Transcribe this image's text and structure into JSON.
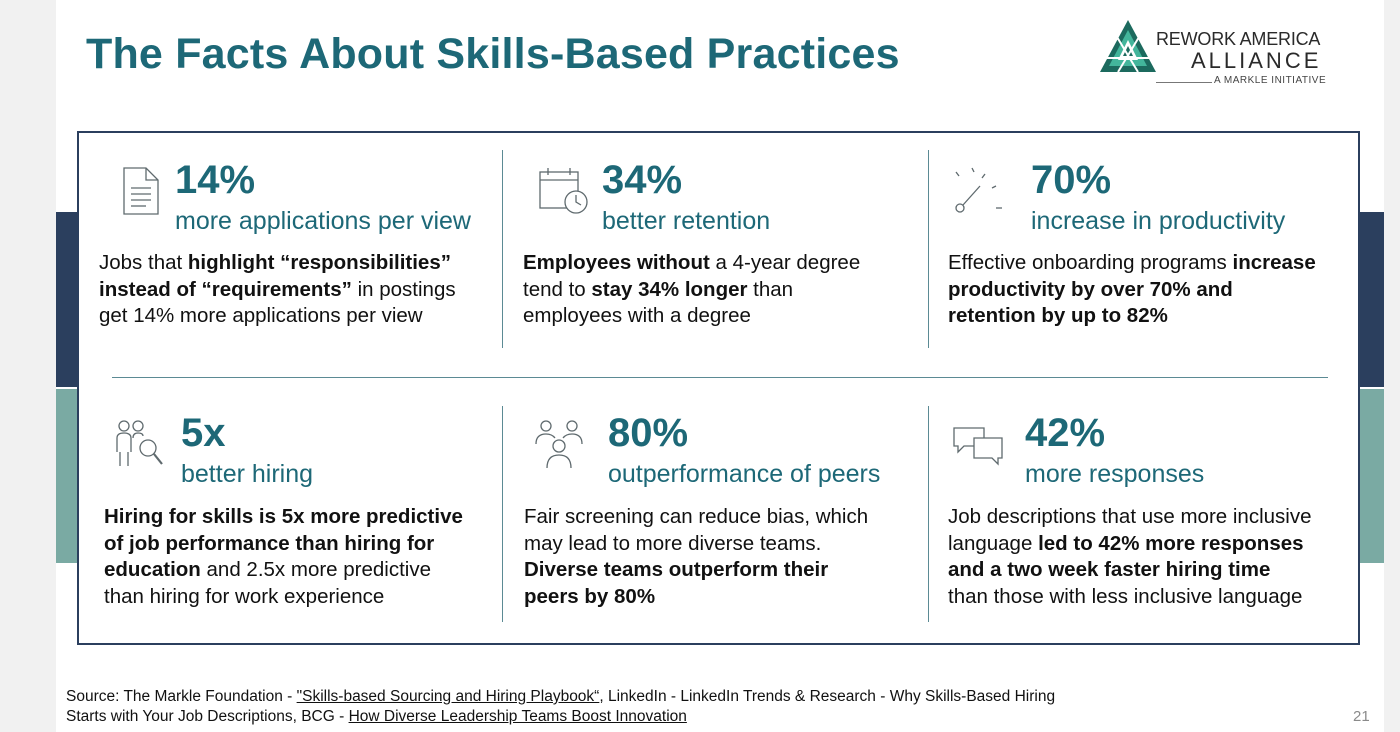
{
  "slide": {
    "title": "The Facts About Skills-Based Practices",
    "page_number": "21"
  },
  "logo": {
    "line1": "REWORK AMERICA",
    "line2": "ALLIANCE",
    "line3": "A MARKLE INITIATIVE",
    "colors": {
      "dark": "#1c6a5e",
      "light": "#43b59b"
    }
  },
  "colors": {
    "title": "#1d6877",
    "navy": "#2b3f5e",
    "teal": "#7aaaa3"
  },
  "stats": [
    {
      "icon": "document-icon",
      "value": "14%",
      "label": "more applications per view",
      "desc": [
        [
          {
            "t": "Jobs that ",
            "b": false
          },
          {
            "t": "highlight “responsibilities”",
            "b": true
          }
        ],
        [
          {
            "t": "instead of “requirements”",
            "b": true
          },
          {
            "t": " in postings",
            "b": false
          }
        ],
        [
          {
            "t": "get 14% more applications per view",
            "b": false
          }
        ]
      ]
    },
    {
      "icon": "calendar-clock-icon",
      "value": "34%",
      "label": "better retention",
      "desc": [
        [
          {
            "t": "Employees without",
            "b": true
          },
          {
            "t": " a 4-year degree",
            "b": false
          }
        ],
        [
          {
            "t": "tend to ",
            "b": false
          },
          {
            "t": "stay 34% longer",
            "b": true
          },
          {
            "t": " than",
            "b": false
          }
        ],
        [
          {
            "t": "employees with a degree",
            "b": false
          }
        ]
      ]
    },
    {
      "icon": "speedometer-icon",
      "value": "70%",
      "label": "increase in productivity",
      "desc": [
        [
          {
            "t": "Effective onboarding programs ",
            "b": false
          },
          {
            "t": "increase",
            "b": true
          }
        ],
        [
          {
            "t": "productivity by over 70% and",
            "b": true
          }
        ],
        [
          {
            "t": "retention by up to 82%",
            "b": true
          }
        ]
      ]
    },
    {
      "icon": "people-search-icon",
      "value": "5x",
      "label": "better hiring",
      "desc": [
        [
          {
            "t": "Hiring for skills is 5x more predictive",
            "b": true
          }
        ],
        [
          {
            "t": "of job performance than hiring for",
            "b": true
          }
        ],
        [
          {
            "t": "education",
            "b": true
          },
          {
            "t": " and 2.5x more predictive",
            "b": false
          }
        ],
        [
          {
            "t": "than hiring for work experience",
            "b": false
          }
        ]
      ]
    },
    {
      "icon": "people-group-icon",
      "value": "80%",
      "label": "outperformance of peers",
      "desc": [
        [
          {
            "t": "Fair screening can reduce bias, which",
            "b": false
          }
        ],
        [
          {
            "t": "may lead to more diverse teams.",
            "b": false
          }
        ],
        [
          {
            "t": "Diverse teams outperform their",
            "b": true
          }
        ],
        [
          {
            "t": "peers by 80%",
            "b": true
          }
        ]
      ]
    },
    {
      "icon": "chat-bubbles-icon",
      "value": "42%",
      "label": "more responses",
      "desc": [
        [
          {
            "t": "Job descriptions that use more inclusive",
            "b": false
          }
        ],
        [
          {
            "t": "language ",
            "b": false
          },
          {
            "t": "led to 42% more responses",
            "b": true
          }
        ],
        [
          {
            "t": "and a two week faster hiring time",
            "b": true
          }
        ],
        [
          {
            "t": "than those with less inclusive language",
            "b": false
          }
        ]
      ]
    }
  ],
  "source": {
    "line1_prefix": "Source: The Markle Foundation - ",
    "line1_link": "\"Skills-based Sourcing and Hiring Playbook“",
    "line1_suffix": ", LinkedIn - LinkedIn Trends & Research - Why Skills-Based Hiring",
    "line2_prefix": "Starts with Your Job Descriptions, BCG - ",
    "line2_link": "How Diverse Leadership Teams Boost Innovation"
  }
}
